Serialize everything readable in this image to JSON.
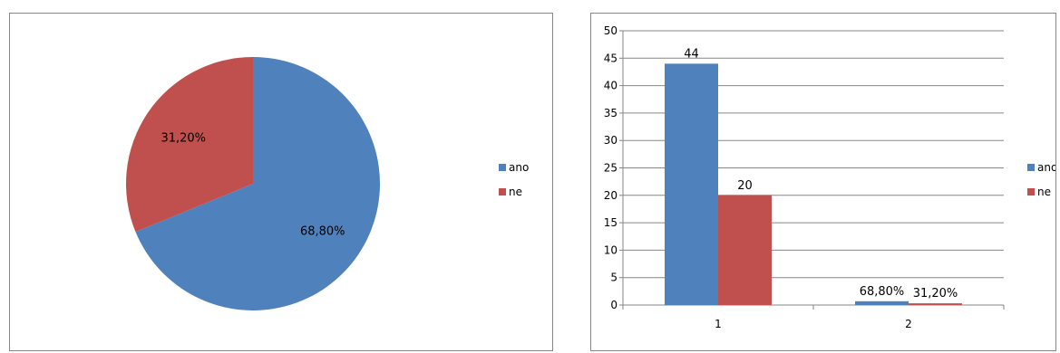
{
  "colors": {
    "ano": "#4F81BD",
    "ne": "#C0504D",
    "grid": "#868686"
  },
  "chart_data": [
    {
      "type": "pie",
      "categories": [
        "ano",
        "ne"
      ],
      "values": [
        68.8,
        31.2
      ],
      "data_labels": [
        "68,80%",
        "31,20%"
      ],
      "legend": {
        "position": "right",
        "entries": [
          "ano",
          "ne"
        ]
      },
      "title": ""
    },
    {
      "type": "bar",
      "categories": [
        "1",
        "2"
      ],
      "series": [
        {
          "name": "ano",
          "values": [
            44,
            0.688
          ],
          "data_labels": [
            "44",
            "68,80%"
          ]
        },
        {
          "name": "ne",
          "values": [
            20,
            0.312
          ],
          "data_labels": [
            "20",
            "31,20%"
          ]
        }
      ],
      "ylim": [
        0,
        50
      ],
      "yticks": [
        "0",
        "5",
        "10",
        "15",
        "20",
        "25",
        "30",
        "35",
        "40",
        "45",
        "50"
      ],
      "grid": true,
      "legend": {
        "position": "right",
        "entries": [
          "ano",
          "ne"
        ]
      },
      "title": "",
      "xlabel": "",
      "ylabel": ""
    }
  ]
}
